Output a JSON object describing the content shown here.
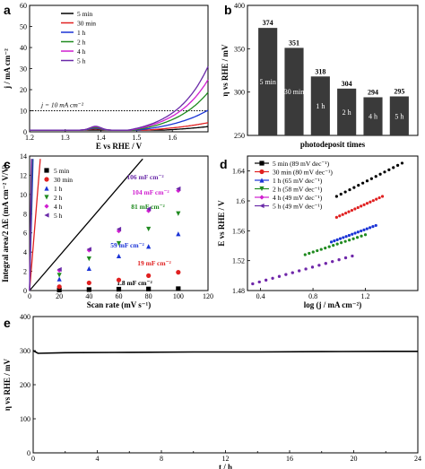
{
  "chart_data": [
    {
      "panel": "a",
      "type": "line",
      "xlabel": "E vs RHE / V",
      "ylabel": "j / mA cm⁻²",
      "xlim": [
        1.2,
        1.7
      ],
      "ylim": [
        0,
        60
      ],
      "xticks": [
        1.2,
        1.3,
        1.4,
        1.5,
        1.6
      ],
      "yticks": [
        0,
        10,
        20,
        30,
        40,
        50,
        60
      ],
      "annotation": "j = 10 mA cm⁻²",
      "legend_position": "top-left",
      "series": [
        {
          "name": "5 min",
          "color": "#000000",
          "onset": 1.575,
          "k": 0.52,
          "gain": 1.6,
          "bump": 0
        },
        {
          "name": "30 min",
          "color": "#e02020",
          "onset": 1.525,
          "k": 0.58,
          "gain": 1.7,
          "bump": 0.6
        },
        {
          "name": "1 h",
          "color": "#1a33d6",
          "onset": 1.5,
          "k": 0.75,
          "gain": 2.2,
          "bump": 0.9
        },
        {
          "name": "2 h",
          "color": "#1f8a1f",
          "onset": 1.49,
          "k": 0.9,
          "gain": 2.5,
          "bump": 1.2
        },
        {
          "name": "4 h",
          "color": "#d01fd0",
          "onset": 1.48,
          "k": 0.95,
          "gain": 2.6,
          "bump": 1.6
        },
        {
          "name": "5 h",
          "color": "#6a2aa8",
          "onset": 1.475,
          "k": 1.0,
          "gain": 2.7,
          "bump": 1.8
        }
      ]
    },
    {
      "panel": "b",
      "type": "bar",
      "xlabel": "photodeposit times",
      "ylabel": "η vs RHE / mV",
      "ylim": [
        250,
        400
      ],
      "yticks": [
        250,
        300,
        350,
        400
      ],
      "categories": [
        "5 min",
        "30 min",
        "1 h",
        "2 h",
        "4 h",
        "5 h"
      ],
      "values": [
        374,
        351,
        318,
        304,
        294,
        295
      ],
      "color": "#3a3a3a"
    },
    {
      "panel": "c",
      "type": "scatter",
      "xlabel": "Scan rate (mV s⁻¹)",
      "ylabel": "Integral area/2 ΔE (mA cm⁻² V/V)",
      "xlim": [
        0,
        120
      ],
      "ylim": [
        0,
        14
      ],
      "xticks": [
        0,
        20,
        40,
        60,
        80,
        100,
        120
      ],
      "yticks": [
        0,
        2,
        4,
        6,
        8,
        10,
        12,
        14
      ],
      "x": [
        20,
        40,
        60,
        80,
        100
      ],
      "legend_position": "top-left",
      "series": [
        {
          "name": "5 min",
          "color": "#000000",
          "marker": "square",
          "slope": 0.0018,
          "fitlabel": "1.8 mF cm⁻²",
          "values": [
            0.06,
            0.1,
            0.14,
            0.16,
            0.19
          ]
        },
        {
          "name": "30 min",
          "color": "#e02020",
          "marker": "circle",
          "slope": 0.019,
          "fitlabel": "19 mF cm⁻²",
          "values": [
            0.4,
            0.8,
            1.1,
            1.55,
            1.9
          ]
        },
        {
          "name": "1 h",
          "color": "#1a33d6",
          "marker": "triangle-up",
          "slope": 0.059,
          "fitlabel": "59 mF cm⁻²",
          "values": [
            1.2,
            2.3,
            3.6,
            4.6,
            5.9
          ]
        },
        {
          "name": "2 h",
          "color": "#1f8a1f",
          "marker": "triangle-down",
          "slope": 0.081,
          "fitlabel": "81 mF cm⁻²",
          "values": [
            1.6,
            3.3,
            4.9,
            6.4,
            8.0
          ]
        },
        {
          "name": "4 h",
          "color": "#d01fd0",
          "marker": "diamond",
          "slope": 0.104,
          "fitlabel": "104 mF cm⁻²",
          "values": [
            2.1,
            4.2,
            6.2,
            8.3,
            10.4
          ]
        },
        {
          "name": "5 h",
          "color": "#6a2aa8",
          "marker": "triangle-left",
          "slope": 0.106,
          "fitlabel": "106 mF cm⁻²",
          "values": [
            2.2,
            4.3,
            6.4,
            8.5,
            10.6
          ]
        }
      ]
    },
    {
      "panel": "d",
      "type": "scatter",
      "xlabel": "log (j / mA cm⁻²)",
      "ylabel": "E vs RHE / V",
      "xlim": [
        0.3,
        1.6
      ],
      "ylim": [
        1.48,
        1.66
      ],
      "xticks": [
        0.4,
        0.8,
        1.2
      ],
      "yticks": [
        1.48,
        1.52,
        1.56,
        1.6,
        1.64
      ],
      "legend_position": "top-left",
      "series": [
        {
          "name": "5 min (89 mV dec⁻¹)",
          "color": "#000000",
          "x0": 0.98,
          "x1": 1.48,
          "y0": 1.606,
          "slope": 0.089
        },
        {
          "name": "30 min (80 mV dec⁻¹)",
          "color": "#e02020",
          "x0": 0.98,
          "x1": 1.33,
          "y0": 1.578,
          "slope": 0.08
        },
        {
          "name": "1 h (65 mV dec⁻¹)",
          "color": "#1a33d6",
          "x0": 0.94,
          "x1": 1.28,
          "y0": 1.545,
          "slope": 0.065
        },
        {
          "name": "2 h (58 mV dec⁻¹)",
          "color": "#1f8a1f",
          "x0": 0.74,
          "x1": 1.2,
          "y0": 1.528,
          "slope": 0.058
        },
        {
          "name": "4 h (49 mV dec⁻¹)",
          "color": "#d01fd0",
          "x0": 0.34,
          "x1": 1.1,
          "y0": 1.489,
          "slope": 0.049
        },
        {
          "name": "5 h (49 mV dec⁻¹)",
          "color": "#6a2aa8",
          "x0": 0.34,
          "x1": 1.1,
          "y0": 1.489,
          "slope": 0.049
        }
      ]
    },
    {
      "panel": "e",
      "type": "line",
      "xlabel": "t / h",
      "ylabel": "η vs RHE / mV",
      "xlim": [
        0,
        24
      ],
      "ylim": [
        0,
        400
      ],
      "xticks": [
        0,
        4,
        8,
        12,
        16,
        20,
        24
      ],
      "yticks": [
        0,
        100,
        200,
        300,
        400
      ],
      "series": [
        {
          "name": "",
          "color": "#000000",
          "x": [
            0,
            0.3,
            2,
            6,
            10,
            14,
            18,
            22,
            24
          ],
          "values": [
            300,
            292,
            294,
            295,
            296,
            296,
            297,
            298,
            298
          ]
        }
      ]
    }
  ]
}
